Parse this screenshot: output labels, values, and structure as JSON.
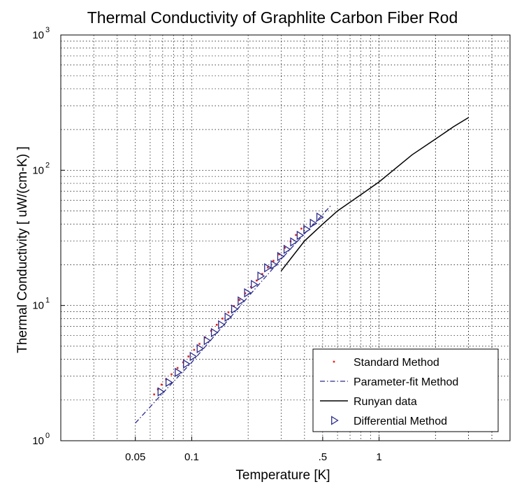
{
  "chart_data": {
    "type": "scatter",
    "title": "Thermal Conductivity of Graphlite Carbon Fiber Rod",
    "xlabel": "Temperature [K]",
    "ylabel": "Thermal Conductivity [ uW/(cm-K) ]",
    "xscale": "log",
    "yscale": "log",
    "xlim": [
      0.02,
      5
    ],
    "ylim": [
      1,
      1000
    ],
    "grid": true,
    "legend_position": "bottom-right",
    "x_ticks": [
      {
        "value": 0.05,
        "label": "0.05"
      },
      {
        "value": 0.1,
        "label": "0.1"
      },
      {
        "value": 0.5,
        "label": ".5"
      },
      {
        "value": 1,
        "label": "1"
      }
    ],
    "y_ticks": [
      {
        "value": 1,
        "base": "10",
        "exp": "0"
      },
      {
        "value": 10,
        "base": "10",
        "exp": "1"
      },
      {
        "value": 100,
        "base": "10",
        "exp": "2"
      },
      {
        "value": 1000,
        "base": "10",
        "exp": "3"
      }
    ],
    "series": [
      {
        "name": "Standard Method",
        "style": "points",
        "color": "#e8231e",
        "x": [
          0.063,
          0.066,
          0.069,
          0.073,
          0.078,
          0.084,
          0.09,
          0.096,
          0.103,
          0.11,
          0.118,
          0.127,
          0.136,
          0.146,
          0.157,
          0.168,
          0.18,
          0.193,
          0.207,
          0.222,
          0.238,
          0.255,
          0.273,
          0.293,
          0.314,
          0.337,
          0.36,
          0.385
        ],
        "y": [
          2.2,
          2.4,
          2.6,
          2.85,
          3.1,
          3.45,
          3.8,
          4.2,
          4.7,
          5.2,
          5.8,
          6.5,
          7.2,
          8.0,
          8.9,
          9.9,
          11.0,
          12.3,
          13.7,
          15.3,
          17.1,
          19.1,
          21.4,
          23.9,
          26.7,
          29.8,
          33.2,
          37.0
        ]
      },
      {
        "name": "Parameter-fit Method",
        "style": "dashdot",
        "color": "#2b2b8c",
        "x": [
          0.05,
          0.07,
          0.1,
          0.15,
          0.2,
          0.3,
          0.4,
          0.5,
          0.55
        ],
        "y": [
          1.35,
          2.25,
          3.8,
          7.3,
          11.6,
          22.0,
          34.0,
          47.0,
          54.5
        ]
      },
      {
        "name": "Runyan data",
        "style": "line",
        "color": "#000000",
        "x": [
          0.3,
          0.4,
          0.5,
          0.6,
          0.8,
          1.0,
          1.5,
          2.0,
          2.5,
          3.0
        ],
        "y": [
          18.0,
          30.0,
          40.0,
          50.0,
          66.0,
          82.0,
          130.0,
          170.0,
          210.0,
          245.0
        ]
      },
      {
        "name": "Differential Method",
        "style": "triangles",
        "color": "#2b2b8c",
        "x": [
          0.068,
          0.075,
          0.084,
          0.093,
          0.101,
          0.11,
          0.12,
          0.131,
          0.143,
          0.155,
          0.168,
          0.182,
          0.197,
          0.214,
          0.232,
          0.252,
          0.273,
          0.296,
          0.32,
          0.347,
          0.376,
          0.408,
          0.442,
          0.479
        ],
        "y": [
          2.3,
          2.7,
          3.2,
          3.7,
          4.2,
          4.8,
          5.5,
          6.3,
          7.2,
          8.2,
          9.4,
          10.8,
          12.4,
          14.3,
          16.5,
          19.0,
          20.0,
          23.0,
          26.0,
          29.5,
          33.0,
          36.5,
          40.5,
          45.0
        ]
      }
    ]
  }
}
